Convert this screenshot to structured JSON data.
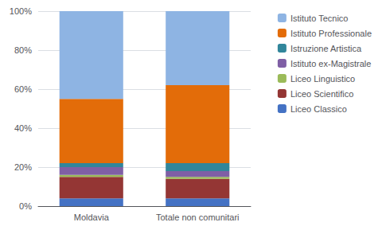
{
  "chart_data": {
    "type": "bar",
    "stacked": true,
    "categories": [
      "Moldavia",
      "Totale non comunitari"
    ],
    "series": [
      {
        "name": "Liceo Classico",
        "color": "#4472C4",
        "values": [
          4.0,
          4.0
        ]
      },
      {
        "name": "Liceo Scientifico",
        "color": "#943634",
        "values": [
          11.0,
          10.0
        ]
      },
      {
        "name": "Liceo Linguistico",
        "color": "#9BBB59",
        "values": [
          1.0,
          1.0
        ]
      },
      {
        "name": "Istituto ex-Magistrale",
        "color": "#7F5FA5",
        "values": [
          4.0,
          3.0
        ]
      },
      {
        "name": "Istruzione Artistica",
        "color": "#31869B",
        "values": [
          2.0,
          4.0
        ]
      },
      {
        "name": "Istituto Professionale",
        "color": "#E36C09",
        "values": [
          33.0,
          40.0
        ]
      },
      {
        "name": "Istituto Tecnico",
        "color": "#8EB4E3",
        "values": [
          45.0,
          38.0
        ]
      }
    ],
    "ylim": [
      0,
      100
    ],
    "yticks": [
      {
        "value": 0,
        "label": "0%"
      },
      {
        "value": 20,
        "label": "20%"
      },
      {
        "value": 40,
        "label": "40%"
      },
      {
        "value": 60,
        "label": "60%"
      },
      {
        "value": 80,
        "label": "80%"
      },
      {
        "value": 100,
        "label": "100%"
      }
    ],
    "grid": true,
    "legend": "upper right"
  }
}
